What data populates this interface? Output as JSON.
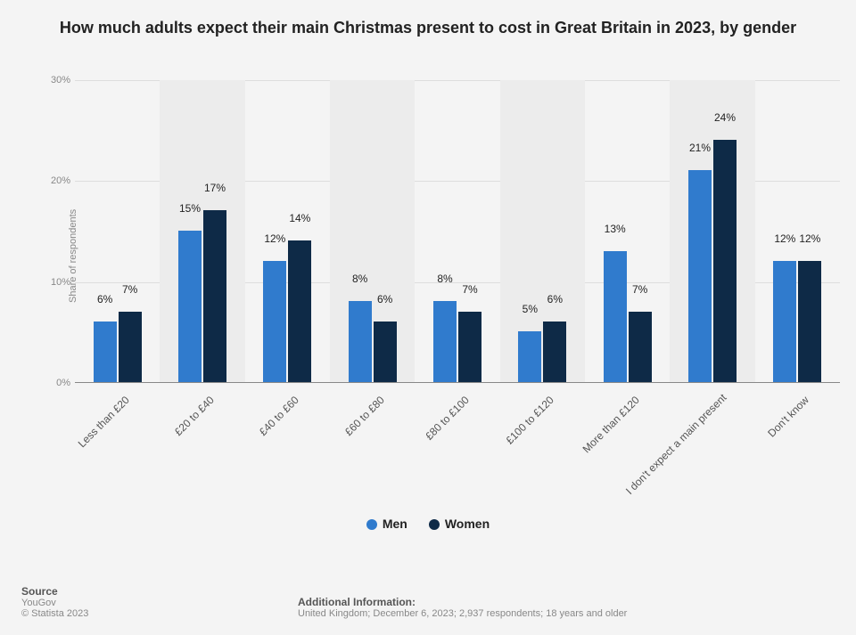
{
  "title": "How much adults expect their main Christmas present to cost in Great Britain in 2023, by gender",
  "y_axis_label": "Share of respondents",
  "y_ticks": [
    0,
    10,
    20,
    30
  ],
  "y_max": 30,
  "categories": [
    "Less than £20",
    "£20 to £40",
    "£40 to £60",
    "£60 to £80",
    "£80 to £100",
    "£100 to £120",
    "More than £120",
    "I don't expect a main present",
    "Don't know"
  ],
  "series": [
    {
      "name": "Men",
      "color": "#307bcd",
      "values": [
        6,
        15,
        12,
        8,
        8,
        5,
        13,
        21,
        12
      ]
    },
    {
      "name": "Women",
      "color": "#0e2a47",
      "values": [
        7,
        17,
        14,
        6,
        7,
        6,
        7,
        24,
        12
      ]
    }
  ],
  "band_color": "#ececec",
  "background_color": "#f4f4f4",
  "footer": {
    "source_label": "Source",
    "source_value": "YouGov",
    "copyright": "© Statista 2023",
    "additional_label": "Additional Information:",
    "additional_value": "United Kingdom; December 6, 2023; 2,937 respondents; 18 years and older"
  }
}
